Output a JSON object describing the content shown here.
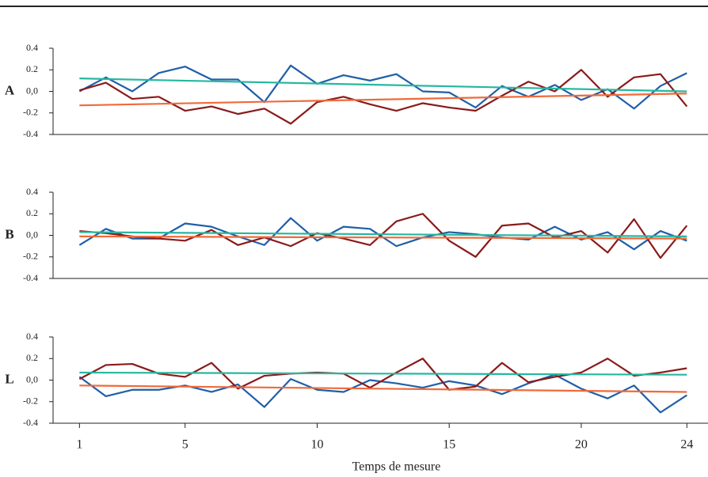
{
  "chart_data": [
    {
      "type": "line",
      "panel_label": "A",
      "x": [
        1,
        2,
        3,
        4,
        5,
        6,
        7,
        8,
        9,
        10,
        11,
        12,
        13,
        14,
        15,
        16,
        17,
        18,
        19,
        20,
        21,
        22,
        23,
        24
      ],
      "xlim": [
        0,
        24.8
      ],
      "ylim": [
        -0.4,
        0.4
      ],
      "yticks": [
        0.4,
        0.2,
        {
          "value": 0,
          "label": "0,0"
        },
        -0.2,
        -0.4
      ],
      "series": [
        {
          "color": "#1f5fa8",
          "values": [
            0,
            0.13,
            0,
            0.17,
            0.23,
            0.11,
            0.11,
            -0.1,
            0.24,
            0.07,
            0.15,
            0.1,
            0.16,
            0,
            -0.01,
            -0.15,
            0.05,
            -0.05,
            0.06,
            -0.08,
            0.02,
            -0.16,
            0.05,
            0.17
          ]
        },
        {
          "color": "#8b1a1a",
          "values": [
            0.01,
            0.08,
            -0.07,
            -0.05,
            -0.18,
            -0.14,
            -0.21,
            -0.16,
            -0.3,
            -0.1,
            -0.05,
            -0.12,
            -0.18,
            -0.11,
            -0.15,
            -0.18,
            -0.04,
            0.09,
            0,
            0.2,
            -0.05,
            0.13,
            0.16,
            -0.14
          ]
        },
        {
          "color": "#26b8a0",
          "x": [
            1,
            24
          ],
          "values": [
            0.12,
            0.0
          ]
        },
        {
          "color": "#f06a3a",
          "x": [
            1,
            24
          ],
          "values": [
            -0.13,
            -0.02
          ]
        }
      ]
    },
    {
      "type": "line",
      "panel_label": "B",
      "x": [
        1,
        2,
        3,
        4,
        5,
        6,
        7,
        8,
        9,
        10,
        11,
        12,
        13,
        14,
        15,
        16,
        17,
        18,
        19,
        20,
        21,
        22,
        23,
        24
      ],
      "xlim": [
        0,
        24.8
      ],
      "ylim": [
        -0.4,
        0.4
      ],
      "yticks": [
        0.4,
        0.2,
        {
          "value": 0,
          "label": "0,0"
        },
        -0.2,
        -0.4
      ],
      "series": [
        {
          "color": "#1f5fa8",
          "values": [
            -0.09,
            0.06,
            -0.03,
            -0.03,
            0.11,
            0.08,
            -0.01,
            -0.09,
            0.16,
            -0.05,
            0.08,
            0.06,
            -0.1,
            -0.02,
            0.03,
            0.01,
            -0.02,
            -0.04,
            0.08,
            -0.04,
            0.03,
            -0.13,
            0.04,
            -0.05
          ]
        },
        {
          "color": "#8b1a1a",
          "values": [
            0.04,
            0.02,
            -0.01,
            -0.03,
            -0.05,
            0.05,
            -0.09,
            -0.02,
            -0.1,
            0.02,
            -0.03,
            -0.09,
            0.13,
            0.2,
            -0.05,
            -0.2,
            0.09,
            0.11,
            -0.02,
            0.04,
            -0.16,
            0.15,
            -0.21,
            0.09
          ]
        },
        {
          "color": "#26b8a0",
          "x": [
            1,
            24
          ],
          "values": [
            0.03,
            -0.01
          ]
        },
        {
          "color": "#f06a3a",
          "x": [
            1,
            24
          ],
          "values": [
            -0.01,
            -0.03
          ]
        }
      ]
    },
    {
      "type": "line",
      "panel_label": "L",
      "x": [
        1,
        2,
        3,
        4,
        5,
        6,
        7,
        8,
        9,
        10,
        11,
        12,
        13,
        14,
        15,
        16,
        17,
        18,
        19,
        20,
        21,
        22,
        23,
        24
      ],
      "xlim": [
        0,
        24.8
      ],
      "ylim": [
        -0.4,
        0.4
      ],
      "xticks": [
        1,
        5,
        10,
        15,
        20,
        24
      ],
      "xlabel": "Temps de mesure",
      "yticks": [
        0.4,
        0.2,
        {
          "value": 0,
          "label": "0,0"
        },
        -0.2,
        -0.4
      ],
      "series": [
        {
          "color": "#1f5fa8",
          "values": [
            0.03,
            -0.15,
            -0.09,
            -0.09,
            -0.05,
            -0.11,
            -0.04,
            -0.25,
            0.01,
            -0.09,
            -0.11,
            0,
            -0.03,
            -0.07,
            -0.01,
            -0.05,
            -0.13,
            -0.03,
            0.05,
            -0.08,
            -0.17,
            -0.05,
            -0.3,
            -0.14
          ]
        },
        {
          "color": "#8b1a1a",
          "values": [
            0.01,
            0.14,
            0.15,
            0.06,
            0.03,
            0.16,
            -0.08,
            0.04,
            0.06,
            0.07,
            0.06,
            -0.07,
            0.07,
            0.2,
            -0.09,
            -0.06,
            0.16,
            -0.02,
            0.03,
            0.07,
            0.2,
            0.04,
            0.07,
            0.11
          ]
        },
        {
          "color": "#26b8a0",
          "x": [
            1,
            24
          ],
          "values": [
            0.07,
            0.05
          ]
        },
        {
          "color": "#f06a3a",
          "x": [
            1,
            24
          ],
          "values": [
            -0.05,
            -0.11
          ]
        }
      ]
    }
  ]
}
